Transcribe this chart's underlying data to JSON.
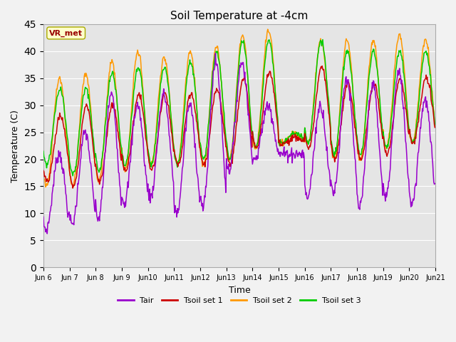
{
  "title": "Soil Temperature at -4cm",
  "xlabel": "Time",
  "ylabel": "Temperature (C)",
  "ylim": [
    0,
    45
  ],
  "yticks": [
    0,
    5,
    10,
    15,
    20,
    25,
    30,
    35,
    40,
    45
  ],
  "colors": {
    "Tair": "#9900cc",
    "Tsoil1": "#cc0000",
    "Tsoil2": "#ff9900",
    "Tsoil3": "#00cc00"
  },
  "legend_labels": [
    "Tair",
    "Tsoil set 1",
    "Tsoil set 2",
    "Tsoil set 3"
  ],
  "annotation": "VR_met",
  "annotation_color": "#990000",
  "annotation_bg": "#ffffcc",
  "background_inner": "#e5e5e5",
  "background_outer": "#f2f2f2",
  "n_days": 15,
  "points_per_day": 48,
  "start_day": 6,
  "tair_min": [
    7,
    8,
    9,
    12,
    13,
    10,
    11,
    18,
    20,
    21,
    13,
    14,
    11,
    13,
    12
  ],
  "tair_max": [
    21,
    25,
    32,
    30,
    32,
    30,
    38,
    38,
    30,
    21,
    30,
    35,
    34,
    36,
    31
  ],
  "ts1_min": [
    16,
    15,
    16,
    18,
    18,
    19,
    19,
    19,
    22,
    23,
    22,
    20,
    20,
    21,
    23
  ],
  "ts1_max": [
    28,
    30,
    30,
    32,
    32,
    32,
    33,
    35,
    36,
    24,
    37,
    34,
    34,
    35,
    35
  ],
  "ts2_min": [
    15,
    15,
    16,
    18,
    19,
    19,
    19,
    20,
    22,
    23,
    23,
    20,
    20,
    22,
    23
  ],
  "ts2_max": [
    35,
    36,
    38,
    40,
    39,
    40,
    41,
    43,
    44,
    25,
    42,
    42,
    42,
    43,
    42
  ],
  "ts3_min": [
    19,
    17,
    18,
    19,
    19,
    19,
    20,
    20,
    22,
    23,
    23,
    21,
    21,
    22,
    23
  ],
  "ts3_max": [
    33,
    33,
    36,
    37,
    37,
    38,
    40,
    42,
    42,
    25,
    42,
    40,
    40,
    40,
    40
  ]
}
